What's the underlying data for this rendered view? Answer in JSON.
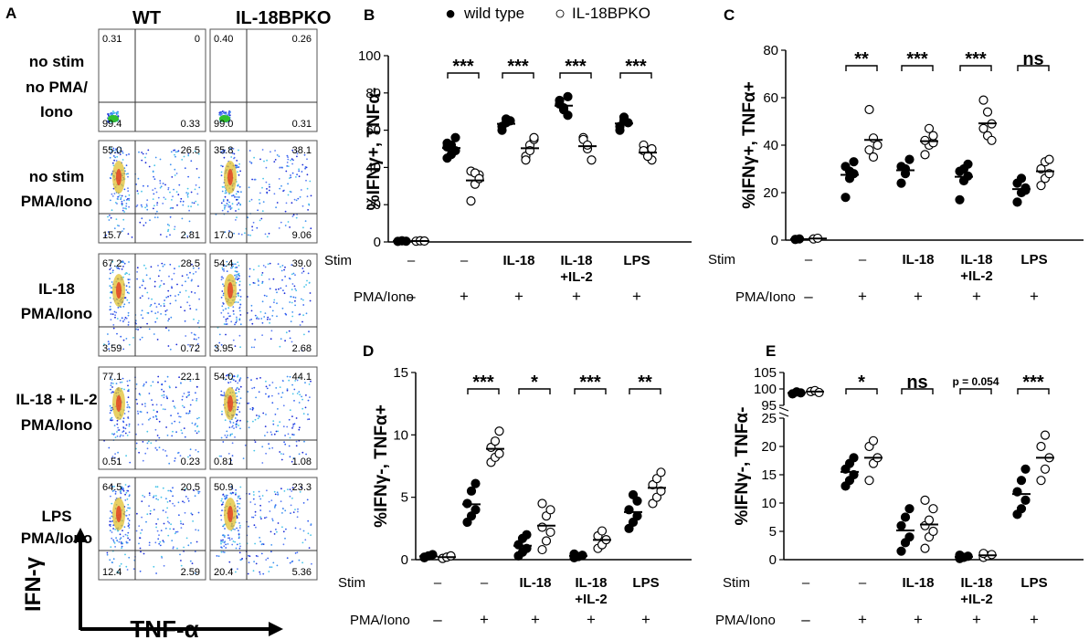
{
  "figure": {
    "legend": {
      "wt_symbol": "●",
      "wt_label": "wild  type",
      "ko_symbol": "○",
      "ko_label": "IL-18BPKO"
    },
    "panelA": {
      "letter": "A",
      "col_headers": [
        "WT",
        "IL-18BPKO"
      ],
      "row_labels": [
        [
          "no stim",
          "no PMA/",
          "Iono"
        ],
        [
          "no stim",
          "PMA/Iono"
        ],
        [
          "IL-18",
          "PMA/Iono"
        ],
        [
          "IL-18 + IL-2",
          "PMA/Iono"
        ],
        [
          "LPS",
          "PMA/Iono"
        ]
      ],
      "quadrants": [
        [
          [
            "0.31",
            "0",
            "99.4",
            "0.33"
          ],
          [
            "0.40",
            "0.26",
            "99.0",
            "0.31"
          ]
        ],
        [
          [
            "55.0",
            "26.5",
            "15.7",
            "2.81"
          ],
          [
            "35.8",
            "38.1",
            "17.0",
            "9.06"
          ]
        ],
        [
          [
            "67.2",
            "28.5",
            "3.59",
            "0.72"
          ],
          [
            "54.4",
            "39.0",
            "3.95",
            "2.68"
          ]
        ],
        [
          [
            "77.1",
            "22.1",
            "0.51",
            "0.23"
          ],
          [
            "54.0",
            "44.1",
            "0.81",
            "1.08"
          ]
        ],
        [
          [
            "64.5",
            "20.5",
            "12.4",
            "2.59"
          ],
          [
            "50.9",
            "23.3",
            "20.4",
            "5.36"
          ]
        ]
      ],
      "y_axis_label": "IFN-γ",
      "x_axis_label": "TNF-α"
    },
    "row_labels": {
      "stim": "Stim",
      "pma": "PMA/Iono"
    },
    "stim_values": [
      "–",
      "–",
      "IL-18",
      "IL-18\n+IL-2",
      "LPS"
    ],
    "pma_values": [
      "–",
      "+",
      "+",
      "+",
      "+"
    ]
  },
  "colors": {
    "wt_fill": "#000000",
    "ko_fill": "#ffffff",
    "stroke": "#000000"
  },
  "chart_data": [
    {
      "panel": "B",
      "type": "scatter",
      "ylabel": "%IFNγ+,  TNFα-",
      "ylim": [
        0,
        100
      ],
      "yticks": [
        0,
        20,
        40,
        60,
        80,
        100
      ],
      "categories": [
        "no stim",
        "no stim PMA/Iono",
        "IL-18",
        "IL-18 + IL-2",
        "LPS"
      ],
      "series": [
        {
          "name": "wild type",
          "values": [
            [
              0.3,
              0.6,
              0.4
            ],
            [
              45,
              52,
              49,
              53,
              47,
              56,
              51
            ],
            [
              62,
              66,
              65,
              60,
              64
            ],
            [
              76,
              72,
              68,
              74,
              71,
              78
            ],
            [
              62,
              67,
              64,
              60,
              65
            ]
          ]
        },
        {
          "name": "IL-18BPKO",
          "values": [
            [
              0.4,
              0.6,
              0.5
            ],
            [
              22,
              31,
              36,
              38,
              37,
              34
            ],
            [
              46,
              52,
              55,
              44,
              49,
              56
            ],
            [
              56,
              50,
              44,
              55,
              52
            ],
            [
              52,
              47,
              44,
              49,
              46,
              50
            ]
          ]
        }
      ],
      "significance": [
        "",
        "***",
        "***",
        "***",
        "***"
      ]
    },
    {
      "panel": "C",
      "type": "scatter",
      "ylabel": "%IFNγ+,  TNFα+",
      "ylim": [
        0,
        80
      ],
      "yticks": [
        0,
        20,
        40,
        60,
        80
      ],
      "categories": [
        "no stim",
        "no stim PMA/Iono",
        "IL-18",
        "IL-18 + IL-2",
        "LPS"
      ],
      "series": [
        {
          "name": "wild type",
          "values": [
            [
              0.3,
              0.5
            ],
            [
              18,
              26,
              28,
              31,
              29,
              33
            ],
            [
              24,
              28,
              34,
              31,
              30
            ],
            [
              17,
              25,
              27,
              29,
              30,
              32
            ],
            [
              16,
              20,
              22,
              24,
              26,
              21
            ]
          ]
        },
        {
          "name": "IL-18BPKO",
          "values": [
            [
              0.5,
              0.8
            ],
            [
              55,
              43,
              40,
              38,
              35
            ],
            [
              36,
              40,
              41,
              42,
              47,
              44
            ],
            [
              59,
              54,
              49,
              47,
              44,
              42
            ],
            [
              23,
              26,
              28,
              30,
              33,
              34
            ]
          ]
        }
      ],
      "significance": [
        "",
        "**",
        "***",
        "***",
        "ns"
      ]
    },
    {
      "panel": "D",
      "type": "scatter",
      "ylabel": "%IFNγ-,  TNFα+",
      "ylim": [
        0,
        15
      ],
      "yticks": [
        0,
        5,
        10,
        15
      ],
      "categories": [
        "no stim",
        "no stim PMA/Iono",
        "IL-18",
        "IL-18 + IL-2",
        "LPS"
      ],
      "series": [
        {
          "name": "wild type",
          "values": [
            [
              0.15,
              0.3,
              0.4,
              0.2
            ],
            [
              3.0,
              3.5,
              4.0,
              4.5,
              5.5,
              6.1
            ],
            [
              0.3,
              0.6,
              0.9,
              1.2,
              1.7,
              2.0
            ],
            [
              0.15,
              0.25,
              0.35,
              0.45
            ],
            [
              2.5,
              3.0,
              3.5,
              4.0,
              5.2,
              4.7
            ]
          ]
        },
        {
          "name": "IL-18BPKO",
          "values": [
            [
              0.1,
              0.2,
              0.3
            ],
            [
              7.8,
              8.2,
              8.5,
              9.0,
              9.5,
              10.3
            ],
            [
              0.8,
              1.5,
              2.2,
              2.6,
              3.5,
              4.0,
              4.5
            ],
            [
              0.9,
              1.2,
              1.6,
              1.9,
              2.3
            ],
            [
              4.5,
              5.0,
              5.5,
              6.0,
              6.5,
              7.0
            ]
          ]
        }
      ],
      "significance": [
        "",
        "***",
        "*",
        "***",
        "**"
      ]
    },
    {
      "panel": "E",
      "type": "scatter",
      "ylabel": "%IFNγ-,  TNFα-",
      "ylim": [
        0,
        105
      ],
      "axis_break": {
        "lower": [
          0,
          25
        ],
        "upper": [
          95,
          105
        ]
      },
      "yticks": [
        0,
        5,
        10,
        15,
        20,
        25,
        95,
        100,
        105
      ],
      "categories": [
        "no stim",
        "no stim PMA/Iono",
        "IL-18",
        "IL-18 + IL-2",
        "LPS"
      ],
      "series": [
        {
          "name": "wild type",
          "values": [
            [
              98.5,
              99.1,
              98.8
            ],
            [
              13,
              14,
              15,
              16,
              17,
              18
            ],
            [
              1.5,
              3,
              4,
              6,
              7.5,
              9
            ],
            [
              0.2,
              0.4,
              0.6,
              0.8
            ],
            [
              8,
              9,
              10.5,
              12,
              14,
              16
            ]
          ]
        },
        {
          "name": "IL-18BPKO",
          "values": [
            [
              99.2,
              99.5,
              98.9
            ],
            [
              14,
              17,
              18,
              20,
              21
            ],
            [
              2,
              4,
              5,
              6,
              7,
              9,
              10.5
            ],
            [
              0.4,
              0.7,
              0.9,
              1.1
            ],
            [
              14,
              16,
              18,
              20,
              22
            ]
          ]
        }
      ],
      "significance": [
        "",
        "*",
        "ns",
        "p = 0.054",
        "***"
      ]
    }
  ]
}
